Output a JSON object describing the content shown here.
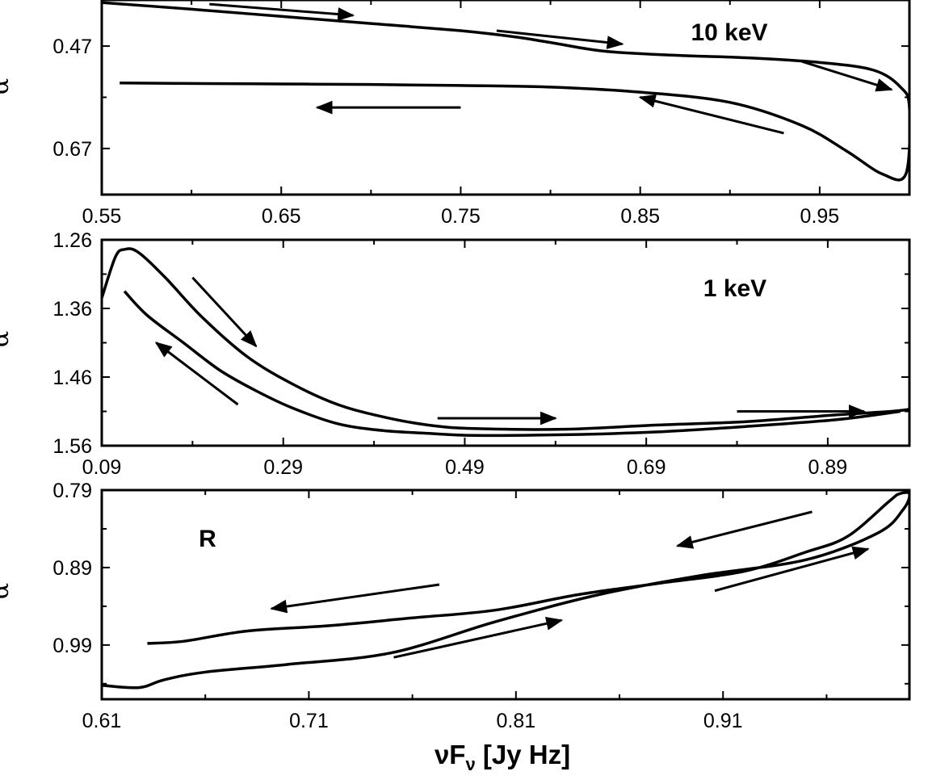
{
  "chart_data": [
    {
      "type": "line",
      "annotation": "10 keV",
      "ylabel": "α",
      "xlim": [
        0.55,
        1.0
      ],
      "ylim": [
        0.38,
        0.76
      ],
      "y_inverted": true,
      "x_major_ticks": [
        0.55,
        0.65,
        0.75,
        0.85,
        0.95
      ],
      "x_tick_labels": [
        "0.55",
        "0.65",
        "0.75",
        "0.85",
        "0.95"
      ],
      "y_major_ticks": [
        0.47,
        0.67
      ],
      "y_tick_labels": [
        "0.47",
        "0.67"
      ],
      "series": [
        {
          "x": [
            0.55,
            0.6,
            0.65,
            0.7,
            0.75,
            0.78,
            0.8,
            0.83,
            0.87,
            0.91,
            0.95,
            0.98,
            0.995,
            1.0,
            0.998,
            0.985,
            0.965,
            0.94,
            0.9,
            0.85,
            0.8,
            0.75,
            0.7,
            0.65,
            0.6,
            0.56
          ],
          "y": [
            0.385,
            0.398,
            0.412,
            0.426,
            0.44,
            0.452,
            0.463,
            0.48,
            0.488,
            0.493,
            0.502,
            0.517,
            0.55,
            0.59,
            0.72,
            0.72,
            0.675,
            0.625,
            0.58,
            0.56,
            0.55,
            0.547,
            0.545,
            0.544,
            0.543,
            0.542
          ]
        }
      ],
      "arrows": [
        {
          "from": [
            0.61,
            0.388
          ],
          "to": [
            0.69,
            0.41
          ]
        },
        {
          "from": [
            0.77,
            0.44
          ],
          "to": [
            0.84,
            0.466
          ]
        },
        {
          "from": [
            0.94,
            0.5
          ],
          "to": [
            0.99,
            0.555
          ]
        },
        {
          "from": [
            0.93,
            0.64
          ],
          "to": [
            0.85,
            0.57
          ]
        },
        {
          "from": [
            0.75,
            0.59
          ],
          "to": [
            0.67,
            0.59
          ]
        }
      ]
    },
    {
      "type": "line",
      "annotation": "1 keV",
      "ylabel": "α",
      "xlim": [
        0.09,
        0.98
      ],
      "ylim": [
        1.26,
        1.56
      ],
      "y_inverted": true,
      "x_major_ticks": [
        0.09,
        0.29,
        0.49,
        0.69,
        0.89
      ],
      "x_tick_labels": [
        "0.09",
        "0.29",
        "0.49",
        "0.69",
        "0.89"
      ],
      "y_major_ticks": [
        1.26,
        1.36,
        1.46,
        1.56
      ],
      "y_tick_labels": [
        "1.26",
        "1.36",
        "1.46",
        "1.56"
      ],
      "series": [
        {
          "x": [
            0.09,
            0.105,
            0.115,
            0.13,
            0.16,
            0.2,
            0.25,
            0.3,
            0.35,
            0.4,
            0.45,
            0.5,
            0.6,
            0.7,
            0.8,
            0.9,
            0.96,
            0.98
          ],
          "y": [
            1.345,
            1.285,
            1.274,
            1.278,
            1.315,
            1.372,
            1.43,
            1.47,
            1.5,
            1.518,
            1.53,
            1.535,
            1.536,
            1.53,
            1.525,
            1.515,
            1.51,
            1.507
          ]
        },
        {
          "x": [
            0.115,
            0.14,
            0.18,
            0.22,
            0.26,
            0.3,
            0.35,
            0.4,
            0.45,
            0.5,
            0.6,
            0.7,
            0.8,
            0.9,
            0.97
          ],
          "y": [
            1.335,
            1.37,
            1.41,
            1.45,
            1.48,
            1.505,
            1.528,
            1.538,
            1.542,
            1.545,
            1.544,
            1.54,
            1.532,
            1.522,
            1.51
          ]
        }
      ],
      "arrows": [
        {
          "from": [
            0.19,
            1.315
          ],
          "to": [
            0.26,
            1.415
          ]
        },
        {
          "from": [
            0.24,
            1.5
          ],
          "to": [
            0.15,
            1.41
          ]
        },
        {
          "from": [
            0.46,
            1.52
          ],
          "to": [
            0.59,
            1.52
          ]
        },
        {
          "from": [
            0.79,
            1.51
          ],
          "to": [
            0.93,
            1.51
          ]
        }
      ]
    },
    {
      "type": "line",
      "annotation": "R",
      "ylabel": "α",
      "xlabel": "νF_ν [Jy Hz]",
      "xlim": [
        0.61,
        1.0
      ],
      "ylim": [
        0.79,
        1.06
      ],
      "y_inverted": true,
      "x_major_ticks": [
        0.61,
        0.71,
        0.81,
        0.91
      ],
      "x_tick_labels": [
        "0.61",
        "0.71",
        "0.81",
        "0.91"
      ],
      "y_major_ticks": [
        0.79,
        0.89,
        0.99
      ],
      "y_tick_labels": [
        "0.79",
        "0.89",
        "0.99"
      ],
      "series": [
        {
          "x": [
            0.61,
            0.628,
            0.64,
            0.66,
            0.7,
            0.75,
            0.8,
            0.85,
            0.9,
            0.95,
            0.985,
            0.997,
            1.0,
            0.995,
            0.99,
            0.97,
            0.95,
            0.92,
            0.88,
            0.84,
            0.8,
            0.76,
            0.72,
            0.68,
            0.65,
            0.632
          ],
          "y": [
            1.042,
            1.045,
            1.035,
            1.025,
            1.015,
            1.0,
            0.96,
            0.925,
            0.9,
            0.88,
            0.845,
            0.815,
            0.795,
            0.795,
            0.805,
            0.85,
            0.87,
            0.895,
            0.91,
            0.925,
            0.945,
            0.955,
            0.965,
            0.972,
            0.985,
            0.988
          ]
        }
      ],
      "arrows": [
        {
          "from": [
            0.953,
            0.818
          ],
          "to": [
            0.888,
            0.862
          ]
        },
        {
          "from": [
            0.773,
            0.912
          ],
          "to": [
            0.692,
            0.943
          ]
        },
        {
          "from": [
            0.751,
            1.006
          ],
          "to": [
            0.832,
            0.958
          ]
        },
        {
          "from": [
            0.906,
            0.92
          ],
          "to": [
            0.98,
            0.866
          ]
        }
      ]
    }
  ]
}
